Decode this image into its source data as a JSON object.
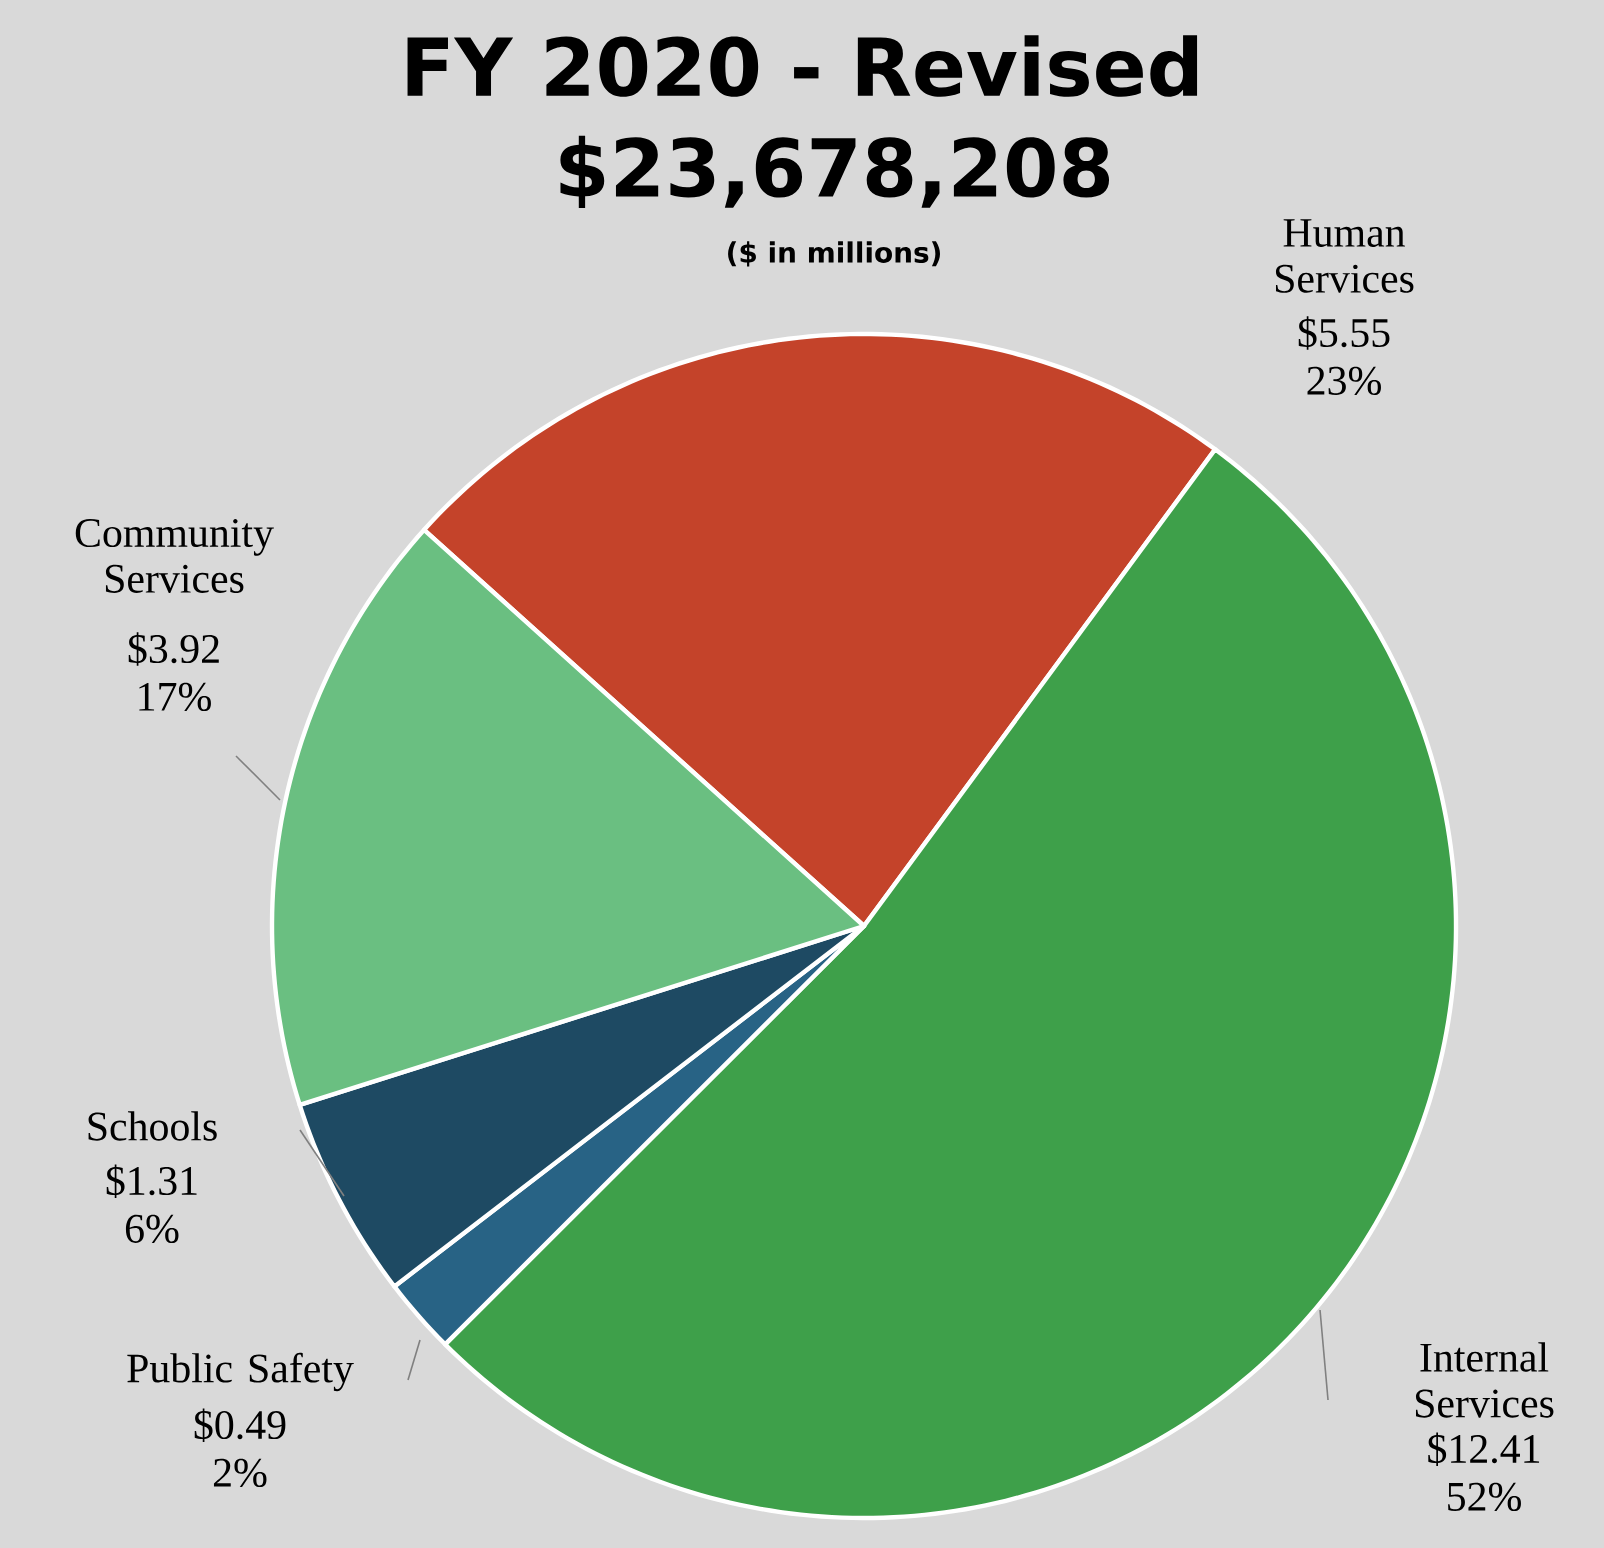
{
  "chart_data": {
    "type": "pie",
    "title": "FY 2020 - Revised",
    "subtitle": "$23,678,208",
    "annotations": [
      "($ in millions)"
    ],
    "categories": [
      "Human Services",
      "Internal Services",
      "Public Safety",
      "Schools",
      "Community Services"
    ],
    "values": [
      5.55,
      12.41,
      0.49,
      1.31,
      3.92
    ],
    "colors": [
      "#c4432a",
      "#3ea04a",
      "#286385",
      "#1e4a63",
      "#6abf81"
    ],
    "value_labels": [
      "$5.55 23%",
      "$12.41 52%",
      "$0.49 2%",
      "$1.31 6%",
      "$3.92 17%"
    ]
  }
}
